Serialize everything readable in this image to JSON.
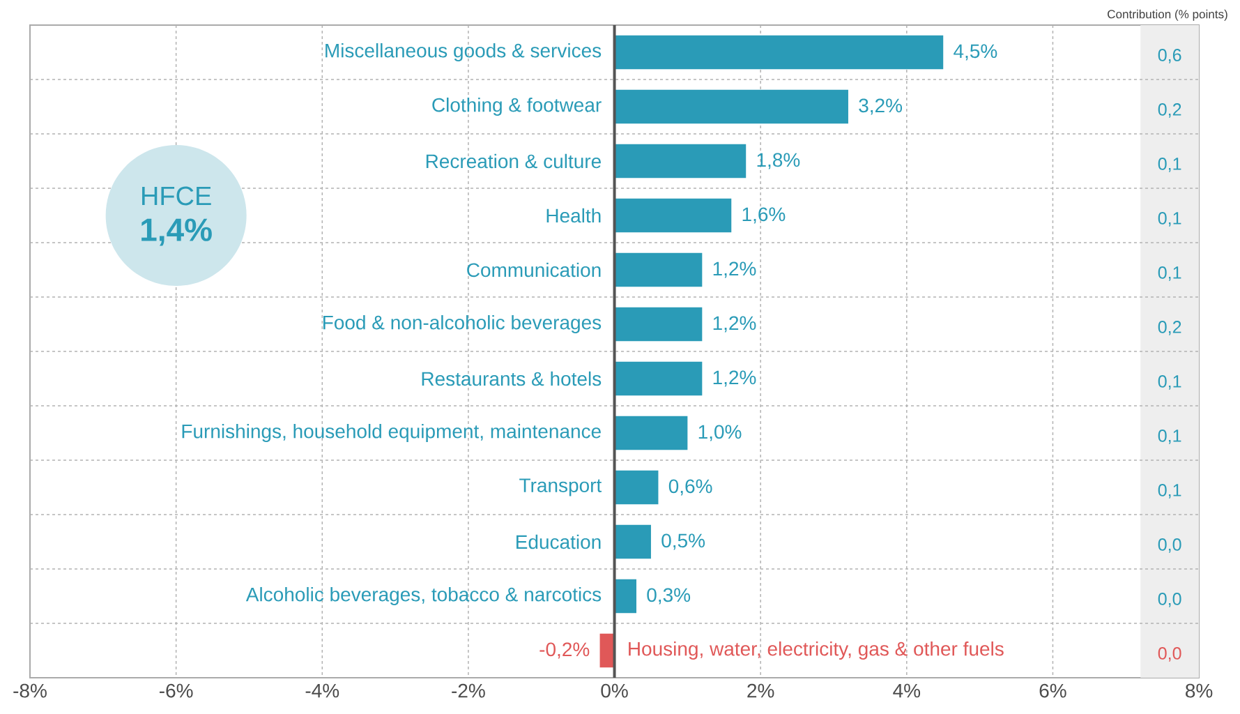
{
  "chart_data": {
    "type": "bar",
    "orientation": "horizontal",
    "categories": [
      "Miscellaneous goods & services",
      "Clothing & footwear",
      "Recreation & culture",
      "Health",
      "Communication",
      "Food & non-alcoholic beverages",
      "Restaurants & hotels",
      "Furnishings, household equipment, maintenance",
      "Transport",
      "Education",
      "Alcoholic beverages, tobacco & narcotics",
      "Housing, water, electricity, gas & other fuels"
    ],
    "values": [
      4.5,
      3.2,
      1.8,
      1.6,
      1.2,
      1.2,
      1.2,
      1.0,
      0.6,
      0.5,
      0.3,
      -0.2
    ],
    "value_labels": [
      "4,5%",
      "3,2%",
      "1,8%",
      "1,6%",
      "1,2%",
      "1,2%",
      "1,2%",
      "1,0%",
      "0,6%",
      "0,5%",
      "0,3%",
      "-0,2%"
    ],
    "colors": [
      "#2a9bb7",
      "#2a9bb7",
      "#2a9bb7",
      "#2a9bb7",
      "#2a9bb7",
      "#2a9bb7",
      "#2a9bb7",
      "#2a9bb7",
      "#2a9bb7",
      "#2a9bb7",
      "#2a9bb7",
      "#e05858"
    ],
    "xlim": [
      -8,
      8
    ],
    "xticks": [
      {
        "value": -8,
        "label": "-8%"
      },
      {
        "value": -6,
        "label": "-6%"
      },
      {
        "value": -4,
        "label": "-4%"
      },
      {
        "value": -2,
        "label": "-2%"
      },
      {
        "value": 0,
        "label": "0%"
      },
      {
        "value": 2,
        "label": "2%"
      },
      {
        "value": 4,
        "label": "4%"
      },
      {
        "value": 6,
        "label": "6%"
      },
      {
        "value": 8,
        "label": "8%"
      }
    ],
    "tick_labels": "x",
    "grid": true,
    "bands": [
      {
        "axis": "x",
        "from": 7.2,
        "to": 8,
        "color": "#eeeeee"
      }
    ],
    "annotations": [
      "Contribution (% points)",
      "0,6",
      "0,2",
      "0,1",
      "0,1",
      "0,1",
      "0,2",
      "0,1",
      "0,1",
      "0,1",
      "0,0",
      "0,0",
      "0,0",
      "HFCE",
      "1,4%"
    ]
  }
}
